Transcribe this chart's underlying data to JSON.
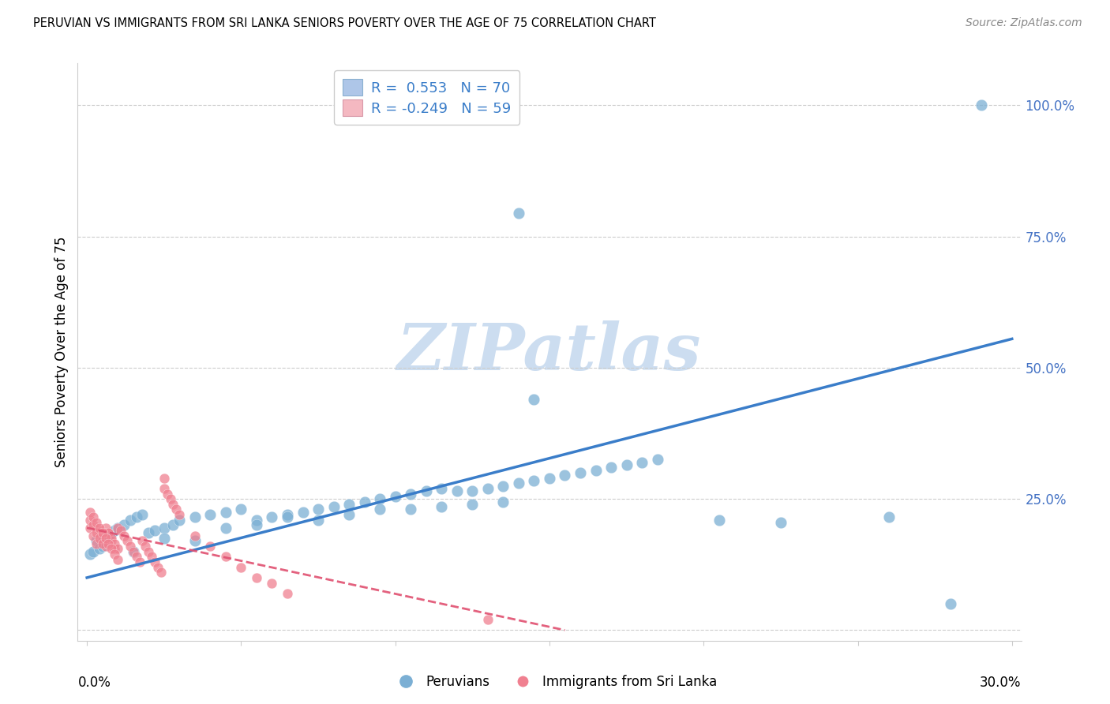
{
  "title": "PERUVIAN VS IMMIGRANTS FROM SRI LANKA SENIORS POVERTY OVER THE AGE OF 75 CORRELATION CHART",
  "source": "Source: ZipAtlas.com",
  "ylabel": "Seniors Poverty Over the Age of 75",
  "xlim": [
    0.0,
    0.3
  ],
  "ylim": [
    0.0,
    1.05
  ],
  "watermark": "ZIPatlas",
  "watermark_color": "#ccddf0",
  "blue_dot_color": "#7bafd4",
  "pink_dot_color": "#f08090",
  "blue_line_color": "#3a7dc9",
  "pink_line_color": "#e05070",
  "axis_color": "#4472c4",
  "peruvians_label": "Peruvians",
  "sri_lanka_label": "Immigrants from Sri Lanka",
  "blue_line_x": [
    0.0,
    0.3
  ],
  "blue_line_y": [
    0.1,
    0.555
  ],
  "pink_line_x": [
    0.0,
    0.155
  ],
  "pink_line_y": [
    0.195,
    0.0
  ],
  "blue_scatter_x": [
    0.001,
    0.002,
    0.003,
    0.004,
    0.005,
    0.006,
    0.007,
    0.008,
    0.009,
    0.01,
    0.012,
    0.014,
    0.016,
    0.018,
    0.02,
    0.022,
    0.025,
    0.028,
    0.03,
    0.035,
    0.04,
    0.045,
    0.05,
    0.055,
    0.06,
    0.065,
    0.07,
    0.075,
    0.08,
    0.085,
    0.09,
    0.095,
    0.1,
    0.105,
    0.11,
    0.115,
    0.12,
    0.125,
    0.13,
    0.135,
    0.14,
    0.145,
    0.15,
    0.155,
    0.16,
    0.165,
    0.17,
    0.175,
    0.18,
    0.185,
    0.015,
    0.025,
    0.035,
    0.045,
    0.055,
    0.065,
    0.075,
    0.085,
    0.095,
    0.105,
    0.115,
    0.125,
    0.135,
    0.145,
    0.205,
    0.225,
    0.26,
    0.28,
    0.14,
    0.29
  ],
  "blue_scatter_y": [
    0.145,
    0.15,
    0.17,
    0.155,
    0.16,
    0.175,
    0.18,
    0.185,
    0.19,
    0.195,
    0.2,
    0.21,
    0.215,
    0.22,
    0.185,
    0.19,
    0.195,
    0.2,
    0.21,
    0.215,
    0.22,
    0.225,
    0.23,
    0.21,
    0.215,
    0.22,
    0.225,
    0.23,
    0.235,
    0.24,
    0.245,
    0.25,
    0.255,
    0.26,
    0.265,
    0.27,
    0.265,
    0.265,
    0.27,
    0.275,
    0.28,
    0.285,
    0.29,
    0.295,
    0.3,
    0.305,
    0.31,
    0.315,
    0.32,
    0.325,
    0.15,
    0.175,
    0.17,
    0.195,
    0.2,
    0.215,
    0.21,
    0.22,
    0.23,
    0.23,
    0.235,
    0.24,
    0.245,
    0.44,
    0.21,
    0.205,
    0.215,
    0.05,
    0.795,
    1.0
  ],
  "pink_scatter_x": [
    0.001,
    0.002,
    0.003,
    0.004,
    0.005,
    0.006,
    0.007,
    0.008,
    0.009,
    0.01,
    0.001,
    0.002,
    0.003,
    0.004,
    0.005,
    0.006,
    0.007,
    0.008,
    0.009,
    0.01,
    0.001,
    0.002,
    0.003,
    0.004,
    0.005,
    0.006,
    0.007,
    0.008,
    0.009,
    0.01,
    0.011,
    0.012,
    0.013,
    0.014,
    0.015,
    0.016,
    0.017,
    0.018,
    0.019,
    0.02,
    0.021,
    0.022,
    0.023,
    0.024,
    0.025,
    0.026,
    0.027,
    0.028,
    0.029,
    0.03,
    0.035,
    0.04,
    0.045,
    0.05,
    0.055,
    0.06,
    0.065,
    0.13,
    0.025
  ],
  "pink_scatter_y": [
    0.195,
    0.18,
    0.165,
    0.19,
    0.175,
    0.16,
    0.185,
    0.17,
    0.155,
    0.195,
    0.21,
    0.2,
    0.185,
    0.175,
    0.165,
    0.195,
    0.185,
    0.175,
    0.165,
    0.155,
    0.225,
    0.215,
    0.205,
    0.195,
    0.185,
    0.175,
    0.165,
    0.155,
    0.145,
    0.135,
    0.19,
    0.18,
    0.17,
    0.16,
    0.15,
    0.14,
    0.13,
    0.17,
    0.16,
    0.15,
    0.14,
    0.13,
    0.12,
    0.11,
    0.27,
    0.26,
    0.25,
    0.24,
    0.23,
    0.22,
    0.18,
    0.16,
    0.14,
    0.12,
    0.1,
    0.09,
    0.07,
    0.02,
    0.29
  ]
}
